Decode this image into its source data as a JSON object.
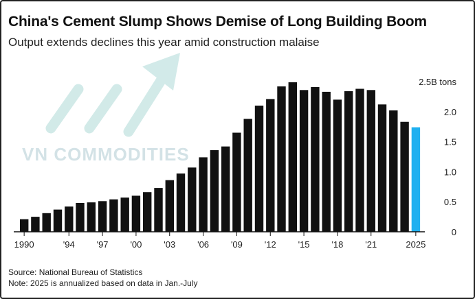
{
  "title": "China's Cement Slump Shows Demise of Long Building Boom",
  "subtitle": "Output extends declines this year amid construction malaise",
  "source": "Source: National Bureau of Statistics",
  "note": "Note: 2025 is annualized based on data in Jan.-July",
  "watermark": "VN COMMODITIES",
  "colors": {
    "bar": "#111111",
    "highlight": "#1fb0f0",
    "text": "#111111",
    "watermark": "#c9dce0"
  },
  "chart_data": {
    "type": "bar",
    "title": "China's Cement Slump Shows Demise of Long Building Boom",
    "subtitle": "Output extends declines this year amid construction malaise",
    "xlabel": "",
    "ylabel": "",
    "unit_label": "2.5B tons",
    "ylim": [
      0,
      2.5
    ],
    "y_ticks": [
      {
        "value": 2.5,
        "label": "2.5B tons"
      },
      {
        "value": 2.0,
        "label": "2.0"
      },
      {
        "value": 1.5,
        "label": "1.5"
      },
      {
        "value": 1.0,
        "label": "1.0"
      },
      {
        "value": 0.5,
        "label": "0.5"
      },
      {
        "value": 0,
        "label": "0"
      }
    ],
    "x_ticks": [
      {
        "year": 1990,
        "label": "1990"
      },
      {
        "year": 1994,
        "label": "'94"
      },
      {
        "year": 1997,
        "label": "'97"
      },
      {
        "year": 2000,
        "label": "'00"
      },
      {
        "year": 2003,
        "label": "'03"
      },
      {
        "year": 2006,
        "label": "'06"
      },
      {
        "year": 2009,
        "label": "'09"
      },
      {
        "year": 2012,
        "label": "'12"
      },
      {
        "year": 2015,
        "label": "'15"
      },
      {
        "year": 2018,
        "label": "'18"
      },
      {
        "year": 2021,
        "label": "'21"
      },
      {
        "year": 2025,
        "label": "2025"
      }
    ],
    "categories": [
      1990,
      1991,
      1992,
      1993,
      1994,
      1995,
      1996,
      1997,
      1998,
      1999,
      2000,
      2001,
      2002,
      2003,
      2004,
      2005,
      2006,
      2007,
      2008,
      2009,
      2010,
      2011,
      2012,
      2013,
      2014,
      2015,
      2016,
      2017,
      2018,
      2019,
      2020,
      2021,
      2022,
      2023,
      2024,
      2025
    ],
    "values": [
      0.21,
      0.25,
      0.31,
      0.37,
      0.42,
      0.48,
      0.49,
      0.51,
      0.54,
      0.57,
      0.6,
      0.66,
      0.73,
      0.86,
      0.97,
      1.07,
      1.24,
      1.36,
      1.42,
      1.65,
      1.88,
      2.1,
      2.21,
      2.42,
      2.49,
      2.36,
      2.41,
      2.33,
      2.2,
      2.34,
      2.38,
      2.36,
      2.12,
      2.02,
      1.83,
      1.74
    ],
    "highlight": [
      2025
    ],
    "grid": false,
    "legend": "none"
  }
}
